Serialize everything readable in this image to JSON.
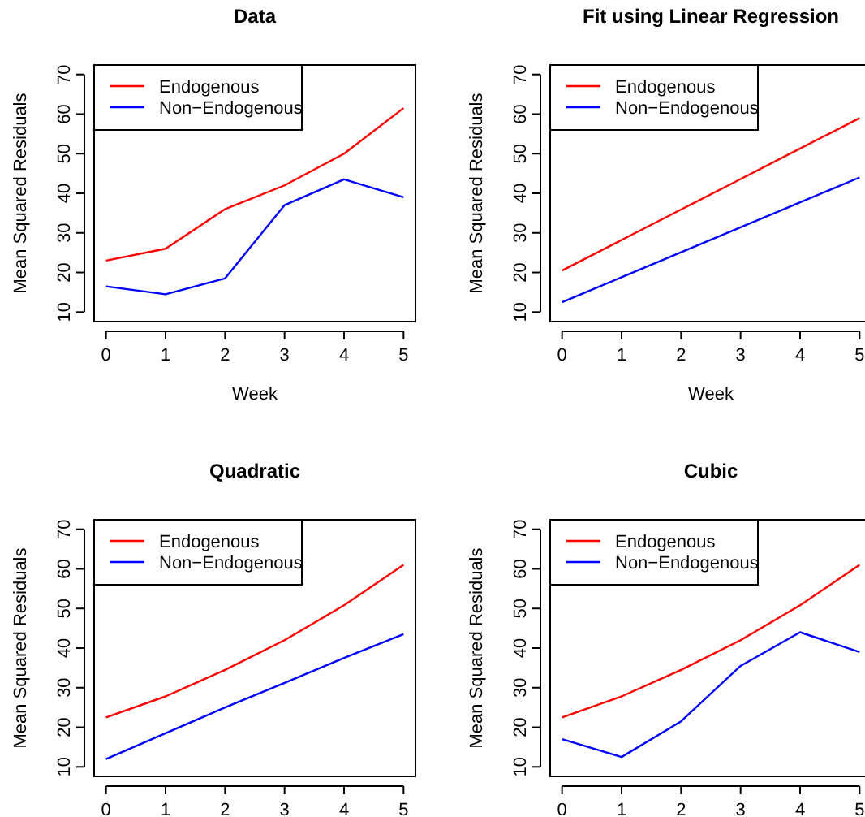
{
  "chart_data": [
    {
      "type": "line",
      "title": "Data",
      "xlabel": "Week",
      "ylabel": "Mean Squared Residuals",
      "x": [
        0,
        1,
        2,
        3,
        4,
        5
      ],
      "xlim": [
        -0.2,
        5.2
      ],
      "xticks": [
        0,
        1,
        2,
        3,
        4,
        5
      ],
      "ylim": [
        7.6,
        72.4
      ],
      "yticks": [
        10,
        20,
        30,
        40,
        50,
        60,
        70
      ],
      "legend": "top left",
      "grid": false,
      "marker": "none",
      "line_style": "solid",
      "series": [
        {
          "name": "Endogenous",
          "color": "#ff0000",
          "values": [
            23,
            26,
            36,
            42,
            50,
            61.5
          ]
        },
        {
          "name": "Non−Endogenous",
          "color": "#0000ff",
          "values": [
            16.5,
            14.5,
            18.5,
            37,
            43.5,
            39
          ]
        }
      ]
    },
    {
      "type": "line",
      "title": "Fit using Linear Regression",
      "xlabel": "Week",
      "ylabel": "Mean Squared Residuals",
      "x": [
        0,
        1,
        2,
        3,
        4,
        5
      ],
      "xlim": [
        -0.2,
        5.2
      ],
      "xticks": [
        0,
        1,
        2,
        3,
        4,
        5
      ],
      "ylim": [
        7.6,
        72.4
      ],
      "yticks": [
        10,
        20,
        30,
        40,
        50,
        60,
        70
      ],
      "legend": "top left",
      "grid": false,
      "marker": "none",
      "line_style": "solid",
      "series": [
        {
          "name": "Endogenous",
          "color": "#ff0000",
          "values": [
            20.5,
            28.2,
            35.9,
            43.6,
            51.3,
            59
          ]
        },
        {
          "name": "Non−Endogenous",
          "color": "#0000ff",
          "values": [
            12.5,
            18.8,
            25.1,
            31.4,
            37.7,
            44
          ]
        }
      ]
    },
    {
      "type": "line",
      "title": "Quadratic",
      "ylabel": "Mean Squared Residuals",
      "x": [
        0,
        1,
        2,
        3,
        4,
        5
      ],
      "xlim": [
        -0.2,
        5.2
      ],
      "xticks": [
        0,
        1,
        2,
        3,
        4,
        5
      ],
      "ylim": [
        7.6,
        72.4
      ],
      "yticks": [
        10,
        20,
        30,
        40,
        50,
        60,
        70
      ],
      "legend": "top left",
      "grid": false,
      "marker": "none",
      "line_style": "solid",
      "series": [
        {
          "name": "Endogenous",
          "color": "#ff0000",
          "values": [
            22.5,
            27.8,
            34.5,
            42,
            50.8,
            61
          ]
        },
        {
          "name": "Non−Endogenous",
          "color": "#0000ff",
          "values": [
            12,
            18.5,
            25,
            31.2,
            37.5,
            43.5
          ]
        }
      ]
    },
    {
      "type": "line",
      "title": "Cubic",
      "ylabel": "Mean Squared Residuals",
      "x": [
        0,
        1,
        2,
        3,
        4,
        5
      ],
      "xlim": [
        -0.2,
        5.2
      ],
      "xticks": [
        0,
        1,
        2,
        3,
        4,
        5
      ],
      "ylim": [
        7.6,
        72.4
      ],
      "yticks": [
        10,
        20,
        30,
        40,
        50,
        60,
        70
      ],
      "legend": "top left",
      "grid": false,
      "marker": "none",
      "line_style": "solid",
      "series": [
        {
          "name": "Endogenous",
          "color": "#ff0000",
          "values": [
            22.5,
            27.8,
            34.5,
            42,
            50.8,
            61
          ]
        },
        {
          "name": "Non−Endogenous",
          "color": "#0000ff",
          "values": [
            17,
            12.5,
            21.5,
            35.5,
            44,
            39
          ]
        }
      ]
    }
  ]
}
